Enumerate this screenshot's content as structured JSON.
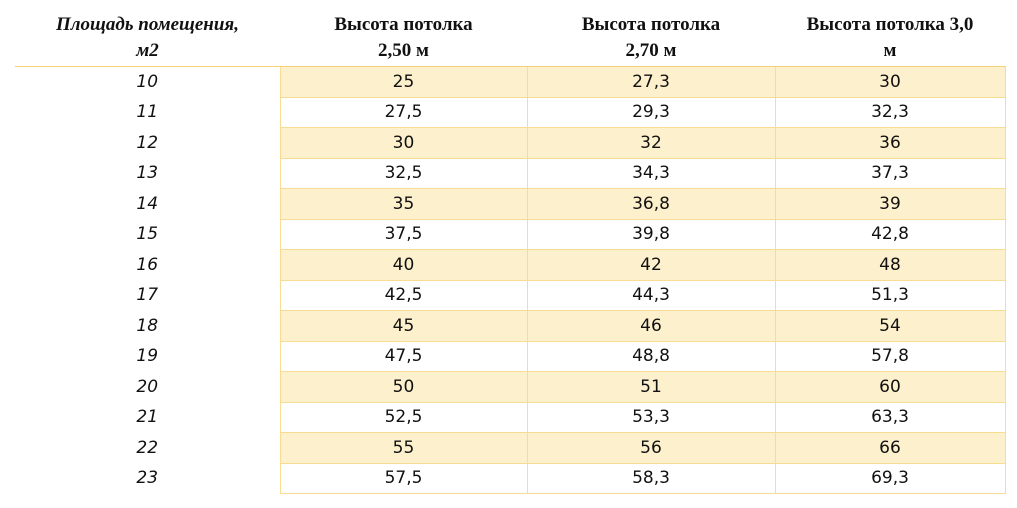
{
  "table": {
    "header": [
      [
        "Площадь помещения,",
        "м2"
      ],
      [
        "Высота потолка",
        "2,50 м"
      ],
      [
        "Высота потолка",
        "2,70 м"
      ],
      [
        "Высота потолка 3,0",
        "м"
      ]
    ],
    "rows": [
      [
        "10",
        "25",
        "27,3",
        "30"
      ],
      [
        "11",
        "27,5",
        "29,3",
        "32,3"
      ],
      [
        "12",
        "30",
        "32",
        "36"
      ],
      [
        "13",
        "32,5",
        "34,3",
        "37,3"
      ],
      [
        "14",
        "35",
        "36,8",
        "39"
      ],
      [
        "15",
        "37,5",
        "39,8",
        "42,8"
      ],
      [
        "16",
        "40",
        "42",
        "48"
      ],
      [
        "17",
        "42,5",
        "44,3",
        "51,3"
      ],
      [
        "18",
        "45",
        "46",
        "54"
      ],
      [
        "19",
        "47,5",
        "48,8",
        "57,8"
      ],
      [
        "20",
        "50",
        "51",
        "60"
      ],
      [
        "21",
        "52,5",
        "53,3",
        "63,3"
      ],
      [
        "22",
        "55",
        "56",
        "66"
      ],
      [
        "23",
        "57,5",
        "58,3",
        "69,3"
      ]
    ]
  }
}
